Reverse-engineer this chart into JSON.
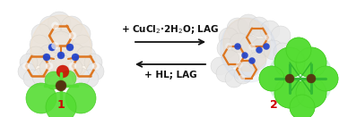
{
  "background_color": "#ffffff",
  "label1": "1",
  "label2": "2",
  "label_color": "#cc0000",
  "label_fontsize": 9,
  "label_fontweight": "bold",
  "arrow_color": "#111111",
  "arrow_linewidth": 1.3,
  "text1_full": "+ CuCl$_{2}$·2H$_{2}$O; LAG",
  "text2_full": "+ HL; LAG",
  "text_fontsize": 7.5,
  "text_fontweight": "bold",
  "fig_width": 3.78,
  "fig_height": 1.31,
  "dpi": 100,
  "white_sphere": "#e8e8e8",
  "white_sphere2": "#d8d8d8",
  "green_cl": "#55dd33",
  "green_cl2": "#44cc22",
  "orange_bond": "#dd7722",
  "blue_n": "#2244cc",
  "brown_cu": "#553311",
  "red_o": "#cc1100",
  "peach_bg": "#f0d8b8",
  "lgreen_bg": "#aaeebb"
}
